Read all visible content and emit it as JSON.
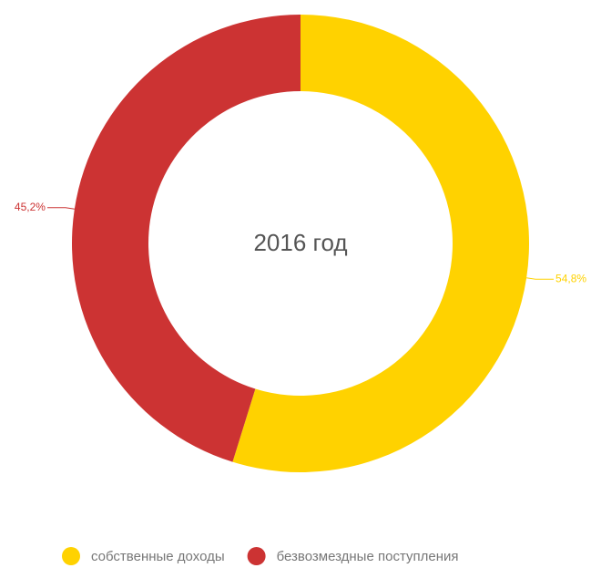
{
  "chart_data": {
    "type": "pie",
    "title": "2016 год",
    "categories": [
      "собственные доходы",
      "безвозмездные поступления"
    ],
    "values": [
      54.8,
      45.2
    ],
    "value_labels": [
      "54,8%",
      "45,2%"
    ],
    "colors": [
      "#ffd200",
      "#cc3333"
    ],
    "legend": "bottom"
  }
}
